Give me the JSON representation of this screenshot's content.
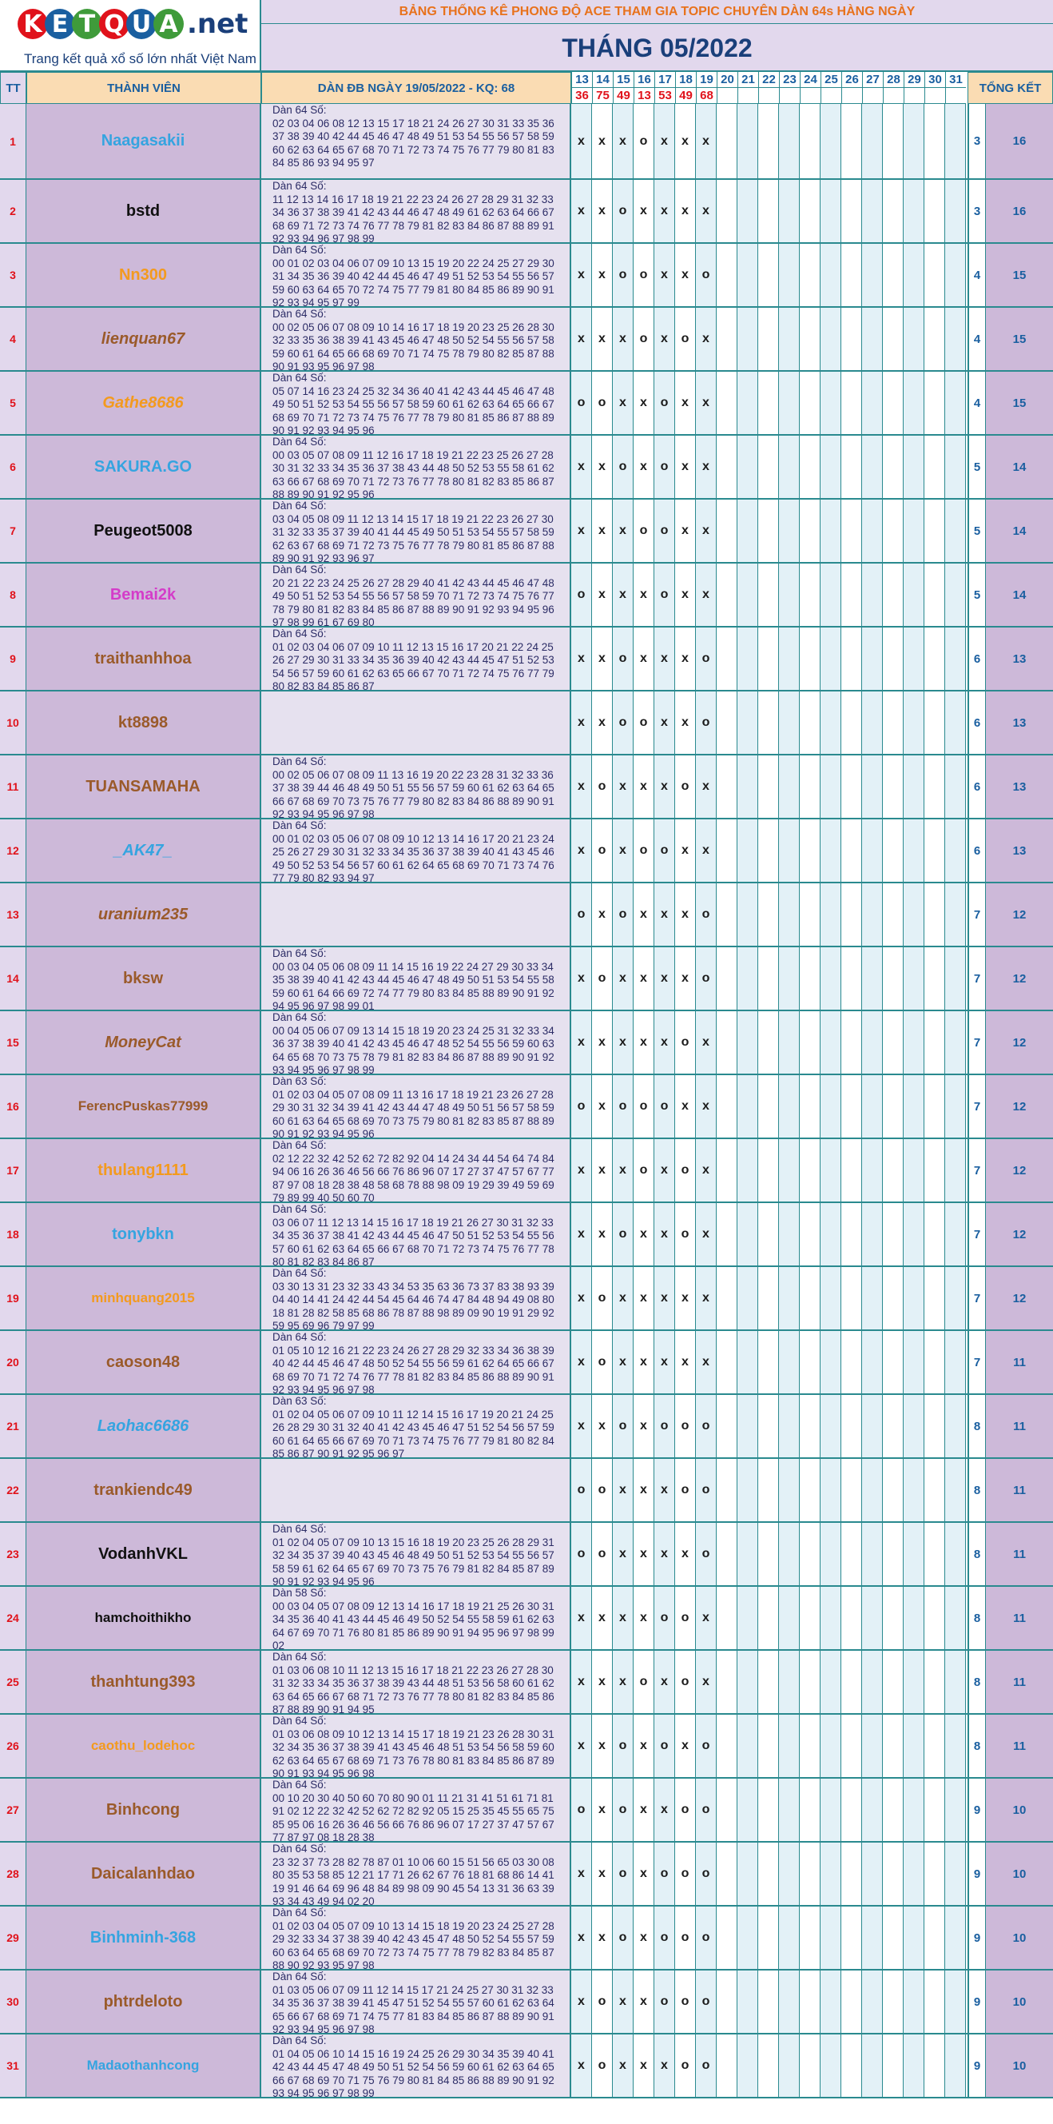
{
  "logo": {
    "letters": [
      "K",
      "E",
      "T",
      "Q",
      "U",
      "A"
    ],
    "suffix": ".net",
    "tagline": "Trang kết quả xổ số lớn nhất Việt Nam"
  },
  "banner": "BẢNG THỐNG KÊ PHONG ĐỘ ACE THAM GIA TOPIC CHUYÊN DÀN 64s HÀNG NGÀY",
  "month_title": "THÁNG 05/2022",
  "headers": {
    "tt": "TT",
    "member": "THÀNH VIÊN",
    "dan": "DÀN ĐB NGÀY 19/05/2022 - KQ: 68",
    "total": "TỔNG KẾT"
  },
  "days": [
    "13",
    "14",
    "15",
    "16",
    "17",
    "18",
    "19",
    "20",
    "21",
    "22",
    "23",
    "24",
    "25",
    "26",
    "27",
    "28",
    "29",
    "30",
    "31"
  ],
  "results": [
    "36",
    "75",
    "49",
    "13",
    "53",
    "49",
    "68",
    "",
    "",
    "",
    "",
    "",
    "",
    "",
    "",
    "",
    "",
    "",
    ""
  ],
  "colors": {
    "border": "#2a8a8f",
    "tt": "#e0121b",
    "header_bg": "#fadcb3",
    "name_bg": "#cdb9d9",
    "dan_bg": "#e6e1ef",
    "day_blue": "#e3f1f7",
    "day_white": "#ffffff",
    "logo_red": "#e0121b",
    "logo_blue": "#1a5fa0",
    "logo_green": "#3f9b3a"
  },
  "members": [
    {
      "tt": "1",
      "name": "Naagasakii",
      "color": "#35a4e0",
      "italic": false,
      "marks": [
        "x",
        "x",
        "x",
        "o",
        "x",
        "x",
        "x"
      ],
      "count": "3",
      "total": "16",
      "dan": "Dàn 64 Số:\n02 03 04 06 08 12 13 15 17 18 21 24 26 27 30 31 33 35 36 37 38 39 40 42 44 45 46 47 48 49 51 53 54 55 56 57 58 59 60 62 63 64 65 67 68 70 71 72 73 74 75 76 77 79 80 81 83 84 85 86 93 94 95 97"
    },
    {
      "tt": "2",
      "name": "bstd",
      "color": "#111111",
      "italic": false,
      "marks": [
        "x",
        "x",
        "o",
        "x",
        "x",
        "x",
        "x"
      ],
      "count": "3",
      "total": "16",
      "dan": "Dàn 64 Số:\n11 12 13 14 16 17 18 19 21 22 23 24 26 27 28 29 31 32 33 34 36 37 38 39 41 42 43 44 46 47 48 49 61 62 63 64 66 67 68 69 71 72 73 74 76 77 78 79 81 82 83 84 86 87 88 89 91 92 93 94 96 97 98 99"
    },
    {
      "tt": "3",
      "name": "Nn300",
      "color": "#f39a1e",
      "italic": false,
      "marks": [
        "x",
        "x",
        "o",
        "o",
        "x",
        "x",
        "o"
      ],
      "count": "4",
      "total": "15",
      "dan": "Dàn 64 Số:\n00 01 02 03 04 06 07 09 10 13 15 19 20 22 24 25 27 29 30 31 34 35 36 39 40 42 44 45 46 47 49 51 52 53 54 55 56 57 59 60 63 64 65 70 72 74 75 77 79 81 80 84 85 86 89 90 91 92 93 94 95 97 99"
    },
    {
      "tt": "4",
      "name": "lienquan67",
      "color": "#9a5a2a",
      "italic": true,
      "marks": [
        "x",
        "x",
        "x",
        "o",
        "x",
        "o",
        "x"
      ],
      "count": "4",
      "total": "15",
      "dan": "Dàn 64 Số:\n00 02 05 06 07 08 09 10 14 16 17 18 19 20 23 25 26 28 30 32 33 35 36 38 39 41 43 45 46 47 48 50 52 54 55 56 57 58 59 60 61 64 65 66 68 69 70 71 74 75 78 79 80 82 85 87 88 90 91 93 95 96 97 98"
    },
    {
      "tt": "5",
      "name": "Gathe8686",
      "color": "#f39a1e",
      "italic": true,
      "marks": [
        "o",
        "o",
        "x",
        "x",
        "o",
        "x",
        "x"
      ],
      "count": "4",
      "total": "15",
      "dan": "Dàn 64 Số:\n05 07 14 16 23 24 25 32 34 36 40 41 42 43 44 45 46 47 48 49 50 51 52 53 54 55 56 57 58 59 60 61 62 63 64 65 66 67 68 69 70 71 72 73 74 75 76 77 78 79 80 81 85 86 87 88 89 90 91 92 93 94 95 96"
    },
    {
      "tt": "6",
      "name": "SAKURA.GO",
      "color": "#35a4e0",
      "italic": false,
      "marks": [
        "x",
        "x",
        "o",
        "x",
        "o",
        "x",
        "x"
      ],
      "count": "5",
      "total": "14",
      "dan": "Dàn 64 Số:\n00 03 05 07 08 09 11 12 16 17 18 19 21 22 23 25 26 27 28 30 31 32 33 34 35 36 37 38 43 44 48 50 52 53 55 58 61 62 63 66 67 68 69 70 71 72 73 76 77 78 80 81 82 83 85 86 87 88 89 90 91 92 95 96"
    },
    {
      "tt": "7",
      "name": "Peugeot5008",
      "color": "#111111",
      "italic": false,
      "marks": [
        "x",
        "x",
        "x",
        "o",
        "o",
        "x",
        "x"
      ],
      "count": "5",
      "total": "14",
      "dan": "Dàn 64 Số:\n03 04 05 08 09 11 12 13 14 15 17 18 19 21 22 23 26 27 30 31 32 33 35 37 39 40 41 44 45 49 50 51 53 54 55 57 58 59 62 63 67 68 69 71 72 73 75 76 77 78 79 80 81 85 86 87 88 89 90 91 92 93 96 97"
    },
    {
      "tt": "8",
      "name": "Bemai2k",
      "color": "#d43cc9",
      "italic": false,
      "marks": [
        "o",
        "x",
        "x",
        "x",
        "o",
        "x",
        "x"
      ],
      "count": "5",
      "total": "14",
      "dan": "Dàn 64 Số:\n20 21 22 23 24 25 26 27 28 29 40 41 42 43 44 45 46 47 48 49 50 51 52 53 54 55 56 57 58 59 70 71 72 73 74 75 76 77 78 79 80 81 82 83 84 85 86 87 88 89 90 91 92 93 94 95 96 97 98 99 61 67 69 80"
    },
    {
      "tt": "9",
      "name": "traithanhhoa",
      "color": "#9a5a2a",
      "italic": false,
      "marks": [
        "x",
        "x",
        "o",
        "x",
        "x",
        "x",
        "o"
      ],
      "count": "6",
      "total": "13",
      "dan": "Dàn 64 Số:\n01 02 03 04 06 07 09 10 11 12 13 15 16 17 20 21 22 24 25 26 27 29 30 31 33 34 35 36 39 40 42 43 44 45 47 51 52 53 54 56 57 59 60 61 62 63 65 66 67 70 71 72 74 75 76 77 79 80 82 83 84 85 86 87"
    },
    {
      "tt": "10",
      "name": "kt8898",
      "color": "#9a5a2a",
      "italic": false,
      "marks": [
        "x",
        "x",
        "o",
        "o",
        "x",
        "x",
        "o"
      ],
      "count": "6",
      "total": "13",
      "dan": ""
    },
    {
      "tt": "11",
      "name": "TUANSAMAHA",
      "color": "#9a5a2a",
      "italic": false,
      "marks": [
        "x",
        "o",
        "x",
        "x",
        "x",
        "o",
        "x"
      ],
      "count": "6",
      "total": "13",
      "dan": "Dàn 64 Số:\n00 02 05 06 07 08 09 11 13 16 19 20 22 23 28 31 32 33 36 37 38 39 44 46 48 49 50 51 55 56 57 59 60 61 62 63 64 65 66 67 68 69 70 73 75 76 77 79 80 82 83 84 86 88 89 90 91 92 93 94 95 96 97 98"
    },
    {
      "tt": "12",
      "name": "_AK47_",
      "color": "#35a4e0",
      "italic": true,
      "marks": [
        "x",
        "o",
        "x",
        "o",
        "o",
        "x",
        "x"
      ],
      "count": "6",
      "total": "13",
      "dan": "Dàn 64 Số:\n00 01 02 03 05 06 07 08 09 10 12 13 14 16 17 20 21 23 24 25 26 27 29 30 31 32 33 34 35 36 37 38 39 40 41 43 45 46 49 50 52 53 54 56 57 60 61 62 64 65 68 69 70 71 73 74 76 77 79 80 82 93 94 97"
    },
    {
      "tt": "13",
      "name": "uranium235",
      "color": "#9a5a2a",
      "italic": true,
      "marks": [
        "o",
        "x",
        "o",
        "x",
        "x",
        "x",
        "o"
      ],
      "count": "7",
      "total": "12",
      "dan": ""
    },
    {
      "tt": "14",
      "name": "bksw",
      "color": "#9a5a2a",
      "italic": false,
      "marks": [
        "x",
        "o",
        "x",
        "x",
        "x",
        "x",
        "o"
      ],
      "count": "7",
      "total": "12",
      "dan": "Dàn 64 Số:\n00 03 04 05 06 08 09 11 14 15 16 19 22 24 27 29 30 33 34 35 38 39 40 41 42 43 44 45 46 47 48 49 50 51 53 54 55 58 59 60 61 64 66 69 72 74 77 79 80 83 84 85 88 89 90 91 92 94 95 96 97 98 99 01"
    },
    {
      "tt": "15",
      "name": "MoneyCat",
      "color": "#9a5a2a",
      "italic": true,
      "marks": [
        "x",
        "x",
        "x",
        "x",
        "x",
        "o",
        "x"
      ],
      "count": "7",
      "total": "12",
      "dan": "Dàn 64 Số:\n00 04 05 06 07 09 13 14 15 18 19 20 23 24 25 31 32 33 34 36 37 38 39 40 41 42 43 45 46 47 48 52 54 55 56 59 60 63 64 65 68 70 73 75 78 79 81 82 83 84 86 87 88 89 90 91 92 93 94 95 96 97 98 99"
    },
    {
      "tt": "16",
      "name": "FerencPuskas77999",
      "color": "#9a5a2a",
      "italic": false,
      "marks": [
        "o",
        "x",
        "o",
        "o",
        "o",
        "x",
        "x"
      ],
      "count": "7",
      "total": "12",
      "dan": "Dàn 63 Số:\n01 02 03 04 05 07 08 09 11 13 16 17 18 19 21 23 26 27 28 29 30 31 32 34 39 41 42 43 44 47 48 49 50 51 56 57 58 59 60 61 63 64 65 68 69 70 73 75 79 80 81 82 83 85 87 88 89 90 91 92 93 94 95 96"
    },
    {
      "tt": "17",
      "name": "thulang1111",
      "color": "#f39a1e",
      "italic": false,
      "marks": [
        "x",
        "x",
        "x",
        "o",
        "x",
        "o",
        "x"
      ],
      "count": "7",
      "total": "12",
      "dan": "Dàn 64 Số:\n02 12 22 32 42 52 62 72 82 92 04 14 24 34 44 54 64 74 84 94 06 16 26 36 46 56 66 76 86 96 07 17 27 37 47 57 67 77 87 97 08 18 28 38 48 58 68 78 88 98 09 19 29 39 49 59 69 79 89 99 40 50 60 70"
    },
    {
      "tt": "18",
      "name": "tonybkn",
      "color": "#35a4e0",
      "italic": false,
      "marks": [
        "x",
        "x",
        "o",
        "x",
        "x",
        "o",
        "x"
      ],
      "count": "7",
      "total": "12",
      "dan": "Dàn 64 Số:\n03 06 07 11 12 13 14 15 16 17 18 19 21 26 27 30 31 32 33 34 35 36 37 38 41 42 43 44 45 46 47 50 51 52 53 54 55 56 57 60 61 62 63 64 65 66 67 68 70 71 72 73 74 75 76 77 78 80 81 82 83 84 86 87"
    },
    {
      "tt": "19",
      "name": "minhquang2015",
      "color": "#f39a1e",
      "italic": false,
      "marks": [
        "x",
        "o",
        "x",
        "x",
        "x",
        "x",
        "x"
      ],
      "count": "7",
      "total": "12",
      "dan": "Dàn 64 Số:\n03 30 13 31 23 32 33 43 34 53 35 63 36 73 37 83 38 93 39 04 40 14 41 24 42 44 54 45 64 46 74 47 84 48 94 49 08 80 18 81 28 82 58 85 68 86 78 87 88 98 89 09 90 19 91 29 92 59 95 69 96 79 97 99"
    },
    {
      "tt": "20",
      "name": "caoson48",
      "color": "#9a5a2a",
      "italic": false,
      "marks": [
        "x",
        "o",
        "x",
        "x",
        "x",
        "x",
        "x"
      ],
      "count": "7",
      "total": "11",
      "dan": "Dàn 64 Số:\n01 05 10 12 16 21 22 23 24 26 27 28 29 32 33 34 36 38 39 40 42 44 45 46 47 48 50 52 54 55 56 59 61 62 64 65 66 67 68 69 70 71 72 74 76 77 78 81 82 83 84 85 86 88 89 90 91 92 93 94 95 96 97 98"
    },
    {
      "tt": "21",
      "name": "Laohac6686",
      "color": "#35a4e0",
      "italic": true,
      "marks": [
        "x",
        "x",
        "o",
        "x",
        "o",
        "o",
        "o"
      ],
      "count": "8",
      "total": "11",
      "dan": "Dàn 63 Số:\n01 02 04 05 06 07 09 10 11 12 14 15 16 17 19 20 21 24 25 26 28 29 30 31 32 40 41 42 43 45 46 47 51 52 54 56 57 59 60 61 64 65 66 67 69 70 71 73 74 75 76 77 79 81 80 82 84 85 86 87 90 91 92 95 96 97"
    },
    {
      "tt": "22",
      "name": "trankiendc49",
      "color": "#9a5a2a",
      "italic": false,
      "marks": [
        "o",
        "o",
        "x",
        "x",
        "x",
        "o",
        "o"
      ],
      "count": "8",
      "total": "11",
      "dan": ""
    },
    {
      "tt": "23",
      "name": "VodanhVKL",
      "color": "#111111",
      "italic": false,
      "marks": [
        "o",
        "o",
        "x",
        "x",
        "x",
        "x",
        "o"
      ],
      "count": "8",
      "total": "11",
      "dan": "Dàn 64 Số:\n01 02 04 05 07 09 10 13 15 16 18 19 20 23 25 26 28 29 31 32 34 35 37 39 40 43 45 46 48 49 50 51 52 53 54 55 56 57 58 59 61 62 64 65 67 69 70 73 75 76 79 81 82 84 85 87 89 90 91 92 93 94 95 96"
    },
    {
      "tt": "24",
      "name": "hamchoithikho",
      "color": "#111111",
      "italic": false,
      "marks": [
        "x",
        "x",
        "x",
        "x",
        "o",
        "o",
        "x"
      ],
      "count": "8",
      "total": "11",
      "dan": "Dàn 58 Số:\n00 03 04 05 07 08 09 12 13 14 16 17 18 19 21 25 26 30 31 34 35 36 40 41 43 44 45 46 49 50 52 54 55 58 59 61 62 63 64 67 69 70 71 76 80 81 85 86 89 90 91 94 95 96 97 98 99 02"
    },
    {
      "tt": "25",
      "name": "thanhtung393",
      "color": "#9a5a2a",
      "italic": false,
      "marks": [
        "x",
        "x",
        "x",
        "o",
        "x",
        "o",
        "x"
      ],
      "count": "8",
      "total": "11",
      "dan": "Dàn 64 Số:\n01 03 06 08 10 11 12 13 15 16 17 18 21 22 23 26 27 28 30 31 32 33 34 35 36 37 38 39 43 44 48 51 53 56 58 60 61 62 63 64 65 66 67 68 71 72 73 76 77 78 80 81 82 83 84 85 86 87 88 89 90 91 94 95"
    },
    {
      "tt": "26",
      "name": "caothu_lodehoc",
      "color": "#f39a1e",
      "italic": false,
      "marks": [
        "x",
        "x",
        "o",
        "x",
        "o",
        "x",
        "o"
      ],
      "count": "8",
      "total": "11",
      "dan": "Dàn 64 Số:\n01 03 06 08 09 10 12 13 14 15 17 18 19 21 23 26 28 30 31 32 34 35 36 37 38 39 41 43 45 46 48 51 53 54 56 58 59 60 62 63 64 65 67 68 69 71 73 76 78 80 81 83 84 85 86 87 89 90 91 93 94 95 96 98"
    },
    {
      "tt": "27",
      "name": "Binhcong",
      "color": "#9a5a2a",
      "italic": false,
      "marks": [
        "o",
        "x",
        "o",
        "x",
        "x",
        "o",
        "o"
      ],
      "count": "9",
      "total": "10",
      "dan": "Dàn 64 Số:\n00 10 20 30 40 50 60 70 80 90 01 11 21 31 41 51 61 71 81 91 02 12 22 32 42 52 62 72 82 92 05 15 25 35 45 55 65 75 85 95 06 16 26 36 46 56 66 76 86 96 07 17 27 37 47 57 67 77 87 97 08 18 28 38"
    },
    {
      "tt": "28",
      "name": "Daicalanhdao",
      "color": "#9a5a2a",
      "italic": false,
      "marks": [
        "x",
        "x",
        "o",
        "x",
        "o",
        "o",
        "o"
      ],
      "count": "9",
      "total": "10",
      "dan": "Dàn 64 Số:\n23 32 37 73 28 82 78 87 01 10 06 60 15 51 56 65 03 30 08 80 35 53 58 85 12 21 17 71 26 62 67 76 18 81 68 86 14 41 19 91 46 64 69 96 48 84 89 98 09 90 45 54 13 31 36 63 39 93 34 43 49 94 02 20"
    },
    {
      "tt": "29",
      "name": "Binhminh-368",
      "color": "#35a4e0",
      "italic": false,
      "marks": [
        "x",
        "x",
        "o",
        "x",
        "o",
        "o",
        "o"
      ],
      "count": "9",
      "total": "10",
      "dan": "Dàn 64 Số:\n01 02 03 04 05 07 09 10 13 14 15 18 19 20 23 24 25 27 28 29 32 33 34 37 38 39 40 42 43 45 47 48 50 52 54 55 57 59 60 63 64 65 68 69 70 72 73 74 75 77 78 79 82 83 84 85 87 88 90 92 93 95 97 98"
    },
    {
      "tt": "30",
      "name": "phtrdeloto",
      "color": "#9a5a2a",
      "italic": false,
      "marks": [
        "x",
        "o",
        "x",
        "x",
        "o",
        "o",
        "o"
      ],
      "count": "9",
      "total": "10",
      "dan": "Dàn 64 Số:\n01 03 05 06 07 09 11 12 14 15 17 21 24 25 27 30 31 32 33 34 35 36 37 38 39 41 45 47 51 52 54 55 57 60 61 62 63 64 65 66 67 68 69 71 74 75 77 81 83 84 85 86 87 88 89 90 91 92 93 94 95 96 97 98"
    },
    {
      "tt": "31",
      "name": "Madaothanhcong",
      "color": "#35a4e0",
      "italic": false,
      "marks": [
        "x",
        "o",
        "x",
        "x",
        "x",
        "o",
        "o"
      ],
      "count": "9",
      "total": "10",
      "dan": "Dàn 64 Số:\n01 04 05 06 10 14 15 16 19 24 25 26 29 30 34 35 39 40 41 42 43 44 45 47 48 49 50 51 52 54 56 59 60 61 62 63 64 65 66 67 68 69 70 71 75 76 79 80 81 84 85 86 88 89 90 91 92 93 94 95 96 97 98 99"
    }
  ]
}
